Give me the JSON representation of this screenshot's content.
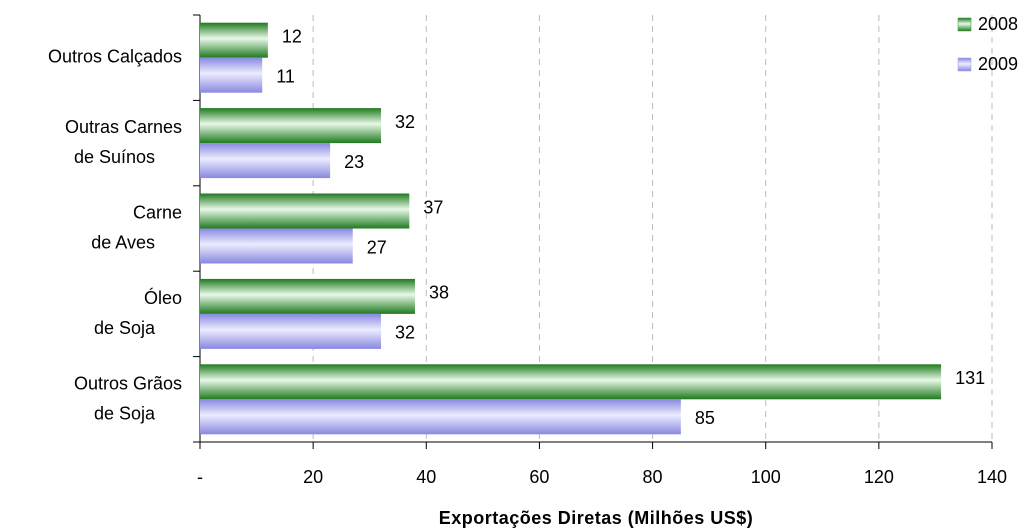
{
  "chart_data": {
    "type": "hbar",
    "x_label": "Exportações Diretas (Milhões US$)",
    "categories": [
      "Outros Calçados",
      "Outras Carnes de Suínos",
      "Carne de Aves",
      "Óleo de Soja",
      "Outros Grãos de Soja"
    ],
    "series": [
      {
        "name": "2008",
        "color": "#2e9a2e",
        "values": [
          12,
          32,
          37,
          38,
          131
        ]
      },
      {
        "name": "2009",
        "color": "#9a9aee",
        "values": [
          11,
          23,
          27,
          32,
          85
        ]
      }
    ],
    "xlim": [
      0,
      140
    ],
    "xticks": [
      {
        "value": 0,
        "label": "-"
      },
      20,
      40,
      60,
      80,
      100,
      120,
      140
    ],
    "grid": true,
    "legend": "top-right"
  }
}
